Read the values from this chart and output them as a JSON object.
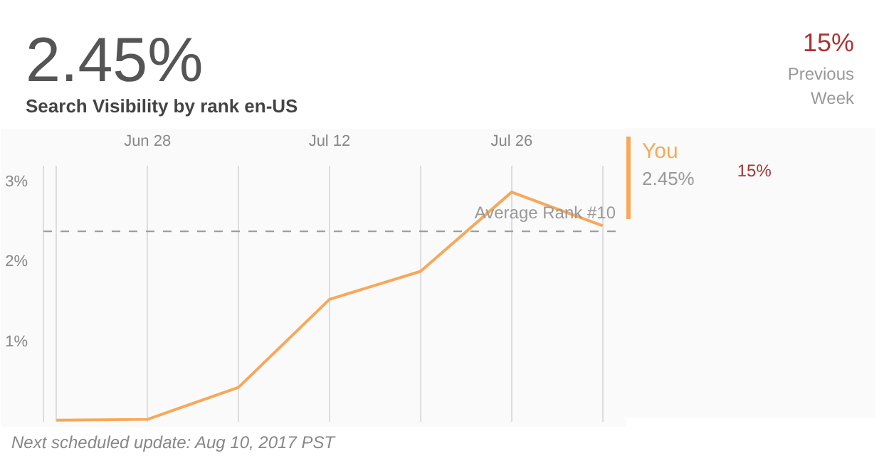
{
  "chart_data": {
    "type": "line",
    "title": "2.45%",
    "subtitle": "Search Visibility by rank en-US",
    "x": [
      "2017-06-21",
      "2017-06-28",
      "2017-07-05",
      "2017-07-12",
      "2017-07-19",
      "2017-07-26",
      "2017-08-02"
    ],
    "series": [
      {
        "name": "You",
        "color": "#f7a85a",
        "values": [
          0.02,
          0.03,
          0.43,
          1.53,
          1.88,
          2.87,
          2.45
        ]
      }
    ],
    "xlim": [
      "2017-06-20",
      "2017-08-03"
    ],
    "xticks": [
      {
        "value": "2017-06-21",
        "label": null
      },
      {
        "value": "2017-06-28",
        "label": "Jun 28"
      },
      {
        "value": "2017-07-05",
        "label": null
      },
      {
        "value": "2017-07-12",
        "label": "Jul 12"
      },
      {
        "value": "2017-07-19",
        "label": null
      },
      {
        "value": "2017-07-26",
        "label": "Jul 26"
      },
      {
        "value": "2017-08-02",
        "label": null
      }
    ],
    "ylim": [
      0,
      3.2
    ],
    "yticks": [
      {
        "value": 1,
        "label": "1%"
      },
      {
        "value": 2,
        "label": "2%"
      },
      {
        "value": 3,
        "label": "3%"
      }
    ],
    "ref_lines": [
      {
        "axis": "y",
        "value": 2.38,
        "label": "Average Rank #10",
        "color": "#999999",
        "line_style": "dashed"
      }
    ],
    "grid": "x",
    "legend": "right",
    "marker": "none",
    "line_style": "solid",
    "annotations": [
      "15%",
      "Previous Week",
      "2.45%",
      "15%",
      "Next scheduled update: Aug 10, 2017 PST"
    ]
  }
}
